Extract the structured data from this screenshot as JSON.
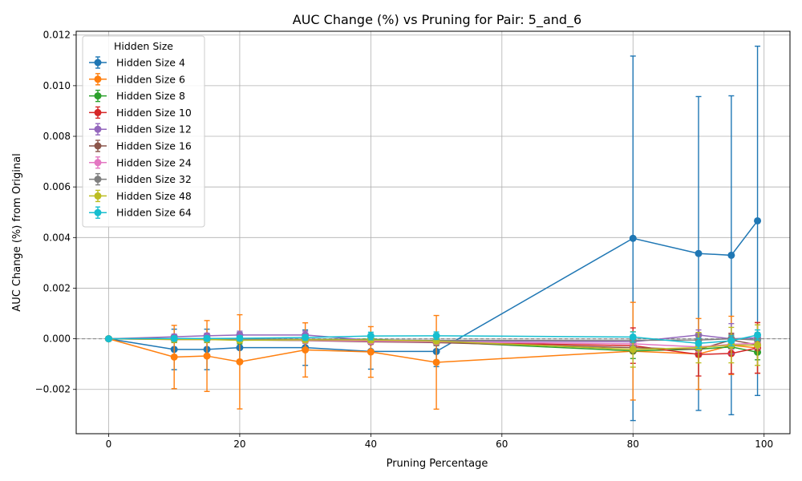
{
  "chart_data": {
    "type": "line",
    "title": "AUC Change (%) vs Pruning for Pair: 5_and_6",
    "xlabel": "Pruning Percentage",
    "ylabel": "AUC Change (%) from Original",
    "xlim": [
      -4.95,
      103.95
    ],
    "ylim": [
      -0.00375,
      0.01215
    ],
    "xticks": [
      0,
      20,
      40,
      60,
      80,
      100
    ],
    "xtick_labels": [
      "0",
      "20",
      "40",
      "60",
      "80",
      "100"
    ],
    "yticks": [
      -0.002,
      0.0,
      0.002,
      0.004,
      0.006,
      0.008,
      0.01,
      0.012
    ],
    "ytick_labels": [
      "−0.002",
      "0.000",
      "0.002",
      "0.004",
      "0.006",
      "0.008",
      "0.010",
      "0.012"
    ],
    "grid": true,
    "reference_line_y": 0,
    "legend": {
      "title": "Hidden Size",
      "placement": "upper left"
    },
    "x": [
      0,
      10,
      15,
      20,
      30,
      40,
      50,
      80,
      90,
      95,
      99
    ],
    "series": [
      {
        "name": "Hidden Size 4",
        "color": "#1f77b4",
        "values": [
          0,
          -0.00042,
          -0.00042,
          -0.00035,
          -0.00035,
          -0.0005,
          -0.0005,
          0.00397,
          0.00337,
          0.0033,
          0.00466
        ],
        "errors": [
          0,
          0.0008,
          0.0008,
          0.0006,
          0.0007,
          0.0007,
          0.0006,
          0.0072,
          0.0062,
          0.0063,
          0.0069
        ]
      },
      {
        "name": "Hidden Size 6",
        "color": "#ff7f0e",
        "values": [
          0,
          -0.00072,
          -0.00068,
          -0.00091,
          -0.00044,
          -0.00052,
          -0.00093,
          -0.00049,
          -0.0006,
          -0.00026,
          -0.00036
        ],
        "errors": [
          0,
          0.00125,
          0.0014,
          0.00186,
          0.00107,
          0.001,
          0.00185,
          0.00193,
          0.0014,
          0.00115,
          0.001
        ]
      },
      {
        "name": "Hidden Size 8",
        "color": "#2ca02c",
        "values": [
          0,
          -0.0,
          0.0,
          -5e-05,
          -2e-05,
          -2e-05,
          -0.00012,
          -0.00048,
          -0.00041,
          -0.00032,
          -0.00053
        ],
        "errors": [
          0,
          0.00015,
          0.00015,
          0.00015,
          0.00015,
          0.00015,
          0.00015,
          0.0003,
          0.0003,
          0.0003,
          0.0003
        ]
      },
      {
        "name": "Hidden Size 10",
        "color": "#d62728",
        "values": [
          0,
          -3e-05,
          -3e-05,
          -4e-05,
          -5e-05,
          -8e-05,
          -0.00014,
          -0.00027,
          -0.00062,
          -0.00058,
          -0.00036
        ],
        "errors": [
          0,
          0.0001,
          0.0001,
          0.0001,
          0.0001,
          0.0001,
          0.0001,
          0.0007,
          0.00085,
          0.0008,
          0.001
        ]
      },
      {
        "name": "Hidden Size 12",
        "color": "#9467bd",
        "values": [
          0,
          8e-05,
          0.00012,
          0.00015,
          0.00015,
          -6e-05,
          -8e-05,
          -0.00012,
          0.00015,
          0.0,
          4e-05
        ],
        "errors": [
          0,
          0.0001,
          0.0001,
          0.00015,
          0.00015,
          0.0001,
          0.0001,
          0.0002,
          0.0002,
          0.0006,
          0.0002
        ]
      },
      {
        "name": "Hidden Size 16",
        "color": "#8c564b",
        "values": [
          0,
          -1e-05,
          -2e-05,
          -5e-05,
          -7e-05,
          -0.00012,
          -0.00015,
          -0.00035,
          -0.00042,
          -5e-05,
          -0.00024
        ],
        "errors": [
          0,
          0.0001,
          0.0001,
          0.0001,
          0.0001,
          0.0001,
          0.0001,
          0.0002,
          0.0002,
          0.0002,
          0.0002
        ]
      },
      {
        "name": "Hidden Size 24",
        "color": "#e377c2",
        "values": [
          0,
          -1e-05,
          -2e-05,
          -3e-05,
          -6e-05,
          -9e-05,
          -0.00012,
          -0.0002,
          -0.00032,
          -0.00022,
          -0.00018
        ],
        "errors": [
          0,
          0.0001,
          0.0001,
          0.0001,
          0.0001,
          0.0001,
          0.0001,
          0.0002,
          0.0002,
          0.0002,
          0.0002
        ]
      },
      {
        "name": "Hidden Size 32",
        "color": "#7f7f7f",
        "values": [
          0,
          1e-05,
          0.0,
          -1e-05,
          -2e-05,
          -4e-05,
          -6e-05,
          -6e-05,
          -5e-05,
          0.0,
          -5e-05
        ],
        "errors": [
          0,
          0.0001,
          0.0001,
          0.0001,
          0.0001,
          0.0001,
          0.0001,
          0.0002,
          0.0002,
          0.0002,
          0.0002
        ]
      },
      {
        "name": "Hidden Size 48",
        "color": "#bcbd22",
        "values": [
          0,
          -3e-05,
          -3e-05,
          -6e-05,
          -4e-05,
          -5e-05,
          -9e-05,
          -0.00042,
          -0.00035,
          -0.00025,
          -0.00025
        ],
        "errors": [
          0,
          0.0001,
          0.0001,
          0.0001,
          0.0001,
          0.0001,
          0.0001,
          0.0007,
          0.0006,
          0.0007,
          0.0008
        ]
      },
      {
        "name": "Hidden Size 64",
        "color": "#17becf",
        "values": [
          0,
          1e-05,
          1e-05,
          2e-05,
          5e-05,
          0.00011,
          0.00012,
          7e-05,
          -0.00018,
          -8e-05,
          0.00015
        ],
        "errors": [
          0,
          0.0001,
          0.0001,
          0.0001,
          0.0001,
          0.00015,
          0.00015,
          0.0002,
          0.0002,
          0.0002,
          0.0002
        ]
      }
    ]
  }
}
